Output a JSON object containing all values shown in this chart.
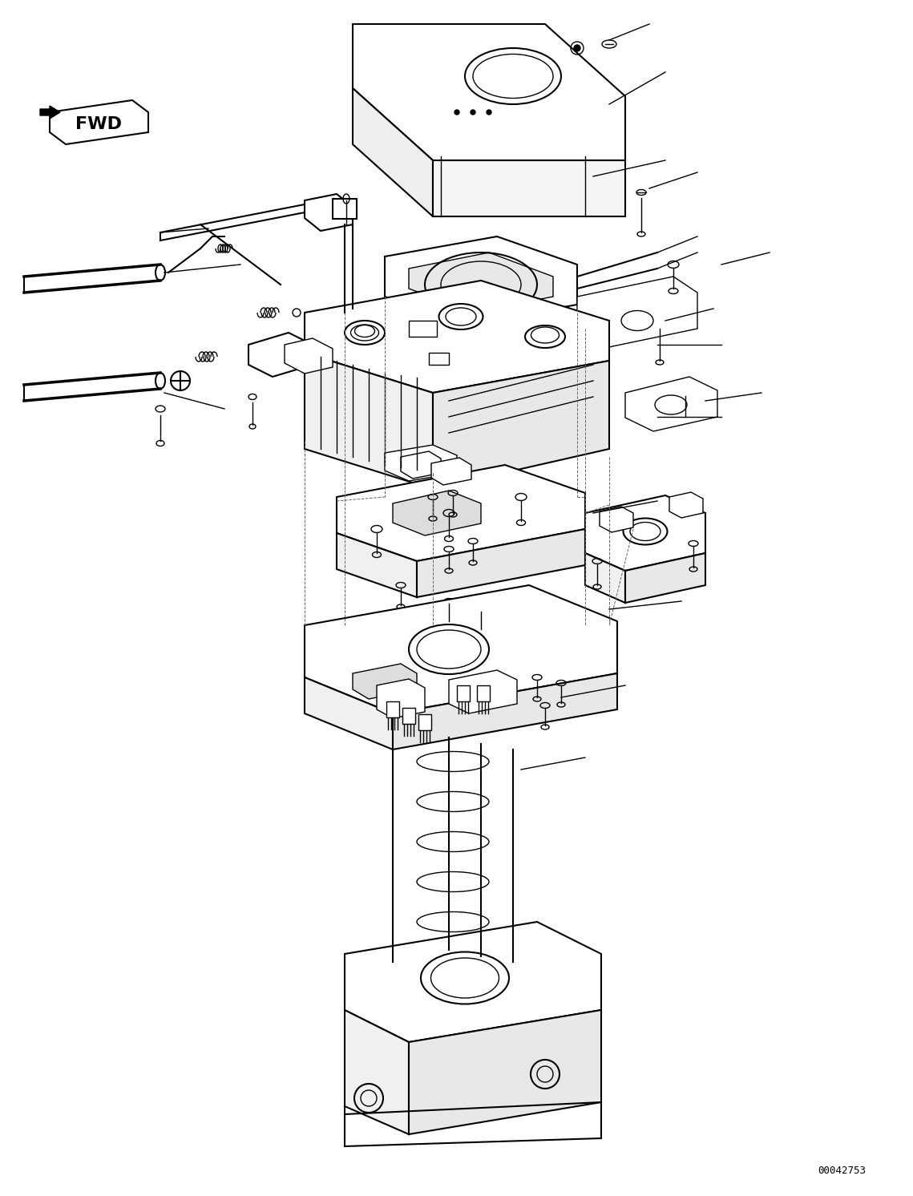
{
  "background_color": "#ffffff",
  "line_color": "#000000",
  "figure_width": 11.39,
  "figure_height": 14.92,
  "dpi": 100,
  "watermark": "00042753",
  "fwd_label": "FWD"
}
